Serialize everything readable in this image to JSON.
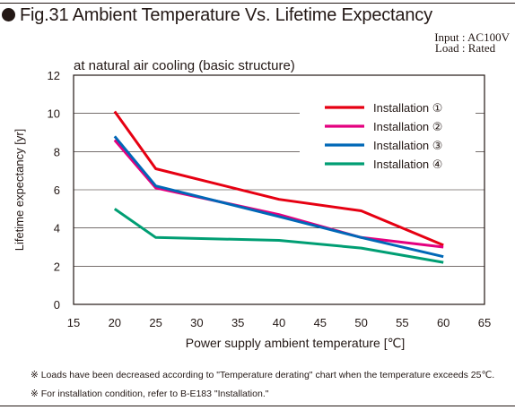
{
  "header": {
    "figure_title": "Fig.31 Ambient Temperature Vs. Lifetime Expectancy",
    "conditions": [
      {
        "label": "Input",
        "value": "AC100V"
      },
      {
        "label": "Load",
        "value": "Rated"
      }
    ]
  },
  "chart_data": {
    "type": "line",
    "title": "at natural air cooling (basic structure)",
    "xlabel": "Power supply ambient temperature [℃]",
    "ylabel": "Lifetime expectancy [yr]",
    "xlim": [
      15,
      65
    ],
    "ylim": [
      0,
      12
    ],
    "xticks": [
      15,
      20,
      25,
      30,
      35,
      40,
      45,
      50,
      55,
      60,
      65
    ],
    "yticks": [
      0,
      2,
      4,
      6,
      8,
      10,
      12
    ],
    "grid": true,
    "legend_position": "top-right",
    "series": [
      {
        "name": "Installation ①",
        "color": "#e60012",
        "x": [
          20,
          25,
          40,
          50,
          60
        ],
        "y": [
          10.1,
          7.1,
          5.5,
          4.9,
          3.1
        ]
      },
      {
        "name": "Installation ②",
        "color": "#e4007f",
        "x": [
          20,
          25,
          40,
          50,
          60
        ],
        "y": [
          8.6,
          6.1,
          4.7,
          3.5,
          3.0
        ]
      },
      {
        "name": "Installation ③",
        "color": "#0068b7",
        "x": [
          20,
          25,
          40,
          50,
          60
        ],
        "y": [
          8.8,
          6.2,
          4.6,
          3.5,
          2.5
        ]
      },
      {
        "name": "Installation ④",
        "color": "#009e73",
        "x": [
          20,
          25,
          40,
          50,
          60
        ],
        "y": [
          5.0,
          3.5,
          3.35,
          2.95,
          2.2
        ]
      }
    ]
  },
  "notes": [
    "※ Loads have been decreased according to \"Temperature derating\" chart  when the temperature exceeds 25℃.",
    "※ For installation condition, refer to B-E183 \"Installation.\""
  ]
}
